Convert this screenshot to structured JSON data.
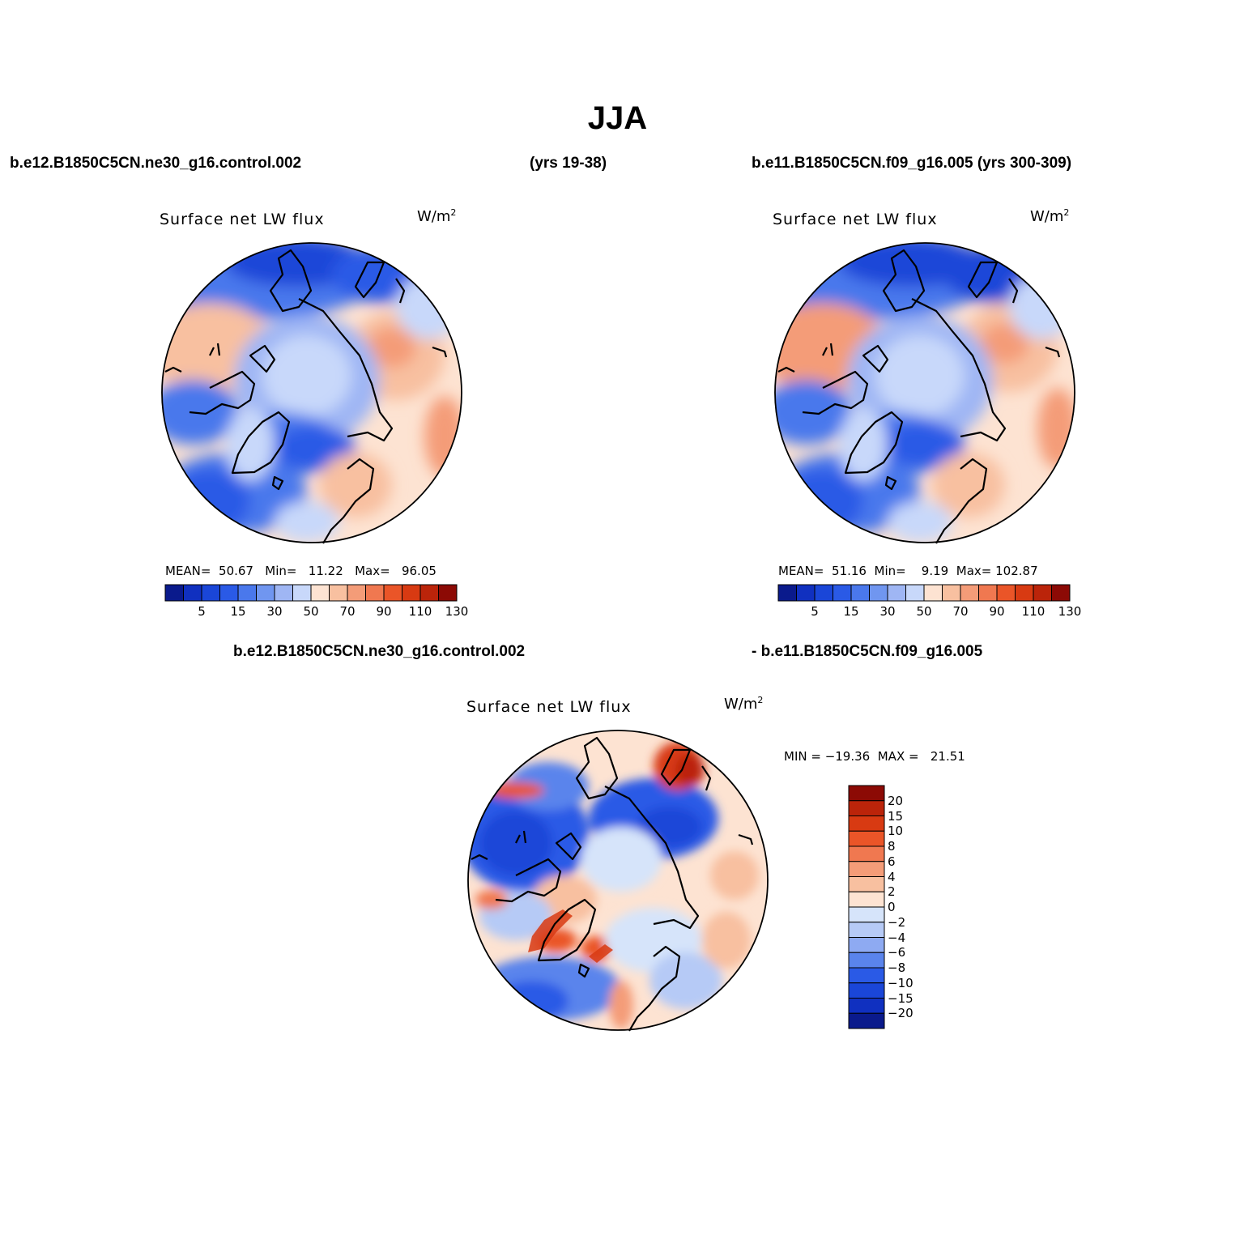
{
  "title": "JJA",
  "top_left": {
    "case": "b.e12.B1850C5CN.ne30_g16.control.002",
    "years": "(yrs 19-38)"
  },
  "top_right": {
    "case": "b.e11.B1850C5CN.f09_g16.005 (yrs 300-309)"
  },
  "diff_header": {
    "left": "b.e12.B1850C5CN.ne30_g16.control.002",
    "right": "- b.e11.B1850C5CN.f09_g16.005"
  },
  "panels": [
    {
      "id": "panel-1",
      "variable": "Surface net LW flux",
      "units": "W/m",
      "units_sup": "2",
      "stats": {
        "mean_label": "MEAN=",
        "mean": "50.67",
        "min_label": "Min=",
        "min": "11.22",
        "max_label": "Max=",
        "max": "96.05"
      }
    },
    {
      "id": "panel-2",
      "variable": "Surface net LW flux",
      "units": "W/m",
      "units_sup": "2",
      "stats": {
        "mean_label": "MEAN=",
        "mean": "51.16",
        "min_label": "Min=",
        "min": "9.19",
        "max_label": "Max=",
        "max": "102.87"
      }
    },
    {
      "id": "panel-diff",
      "variable": "Surface net LW flux",
      "units": "W/m",
      "units_sup": "2",
      "stats_text": "MIN = −19.36  MAX =   21.51"
    }
  ],
  "colorbar_main": {
    "colors": [
      "#0a1a8c",
      "#1030c0",
      "#1a46d8",
      "#2a5ae6",
      "#4a78ec",
      "#7096f0",
      "#9fb6f4",
      "#c8d8fa",
      "#fde3d2",
      "#f8c0a0",
      "#f49c78",
      "#f07850",
      "#ea5528",
      "#d83a12",
      "#bb240a",
      "#8c0a05"
    ],
    "labels": [
      "5",
      "15",
      "30",
      "50",
      "70",
      "90",
      "110",
      "130"
    ]
  },
  "colorbar_diff": {
    "colors": [
      "#8c0a05",
      "#bb240a",
      "#d83a12",
      "#ea5528",
      "#f07850",
      "#f49c78",
      "#f8c0a0",
      "#fde3d2",
      "#d6e4fa",
      "#b6caf6",
      "#8eaaf2",
      "#5a84ec",
      "#2a5ae6",
      "#1a46d8",
      "#1030c0",
      "#0a1a8c"
    ],
    "labels": [
      "20",
      "15",
      "10",
      "8",
      "6",
      "4",
      "2",
      "0",
      "−2",
      "−4",
      "−6",
      "−8",
      "−10",
      "−15",
      "−20"
    ]
  }
}
